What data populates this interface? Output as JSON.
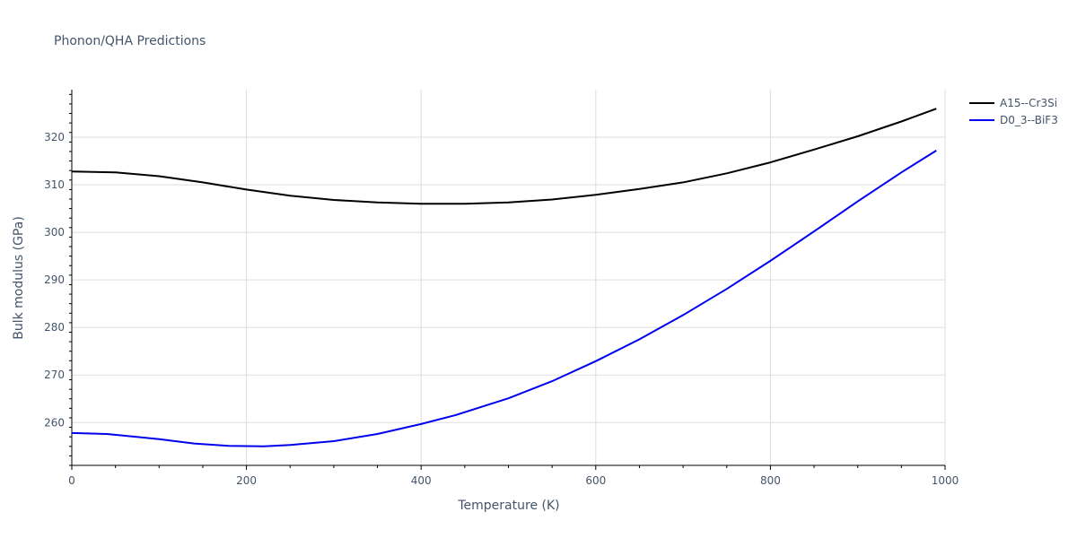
{
  "chart_data": {
    "type": "line",
    "title": "Phonon/QHA Predictions",
    "xlabel": "Temperature (K)",
    "ylabel": "Bulk modulus (GPa)",
    "xlim": [
      0,
      1000
    ],
    "ylim": [
      251,
      330
    ],
    "xticks": [
      0,
      200,
      400,
      600,
      800,
      1000
    ],
    "yticks": [
      260,
      270,
      280,
      290,
      300,
      310,
      320
    ],
    "grid": true,
    "legend_position": "top-right",
    "series": [
      {
        "name": "A15--Cr3Si",
        "color": "#000000",
        "x": [
          0,
          50,
          100,
          150,
          200,
          250,
          300,
          350,
          400,
          450,
          500,
          550,
          600,
          650,
          700,
          750,
          800,
          850,
          900,
          950,
          990
        ],
        "y": [
          312.8,
          312.6,
          311.8,
          310.5,
          309.0,
          307.7,
          306.8,
          306.3,
          306.0,
          306.0,
          306.3,
          306.9,
          307.9,
          309.1,
          310.5,
          312.4,
          314.7,
          317.4,
          320.2,
          323.3,
          326.0
        ]
      },
      {
        "name": "D0_3--BiF3",
        "color": "#0000ee",
        "x": [
          0,
          40,
          100,
          140,
          180,
          220,
          250,
          300,
          350,
          400,
          440,
          500,
          550,
          600,
          650,
          700,
          750,
          800,
          850,
          900,
          950,
          990
        ],
        "y": [
          257.8,
          257.6,
          256.5,
          255.6,
          255.1,
          255.0,
          255.3,
          256.1,
          257.6,
          259.7,
          261.6,
          265.1,
          268.7,
          272.9,
          277.5,
          282.6,
          288.1,
          294.0,
          300.2,
          306.5,
          312.6,
          317.2
        ]
      }
    ]
  }
}
